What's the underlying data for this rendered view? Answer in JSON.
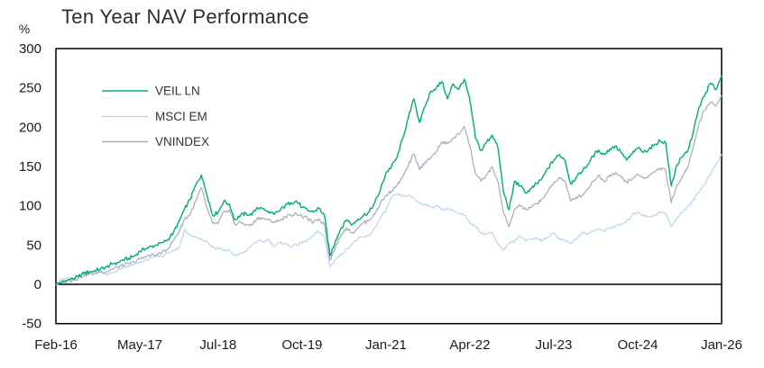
{
  "title": "Ten Year NAV Performance",
  "y_axis": {
    "unit": "%",
    "ticks": [
      300,
      250,
      200,
      150,
      100,
      50,
      0,
      -50
    ]
  },
  "x_axis": {
    "tick_labels": [
      "Feb-16",
      "May-17",
      "Jul-18",
      "Oct-19",
      "Jan-21",
      "Apr-22",
      "Jul-23",
      "Oct-24",
      "Jan-26"
    ],
    "tick_months": [
      0,
      15,
      29,
      44,
      59,
      74,
      89,
      104,
      119
    ]
  },
  "colors": {
    "veil_ln": "#00ae73",
    "msci_em": "#bdd6ee",
    "vnindex": "#a6aec0",
    "axis": "#000000"
  },
  "chart_data": {
    "type": "line",
    "title": "Ten Year NAV Performance",
    "ylabel": "%",
    "ylim": [
      -50,
      300
    ],
    "grid": false,
    "legend_position": "top-left inside plot",
    "x_start": "Feb-2016",
    "x_end": "Jan-2026",
    "x_frequency": "monthly",
    "x_tick_labels": [
      "Feb-16",
      "May-17",
      "Jul-18",
      "Oct-19",
      "Jan-21",
      "Apr-22",
      "Jul-23",
      "Oct-24",
      "Jan-26"
    ],
    "series": [
      {
        "name": "VEIL LN",
        "color": "#00ae73",
        "values": [
          0,
          3,
          5,
          7,
          10,
          14,
          16,
          17,
          20,
          22,
          26,
          28,
          31,
          33,
          36,
          42,
          45,
          48,
          50,
          53,
          57,
          66,
          80,
          96,
          108,
          126,
          139,
          114,
          88,
          92,
          106,
          102,
          82,
          88,
          90,
          88,
          98,
          96,
          91,
          89,
          94,
          100,
          104,
          106,
          98,
          94,
          92,
          97,
          88,
          36,
          56,
          72,
          82,
          76,
          83,
          88,
          92,
          104,
          120,
          142,
          150,
          162,
          186,
          212,
          236,
          206,
          226,
          246,
          250,
          258,
          236,
          255,
          248,
          261,
          234,
          186,
          170,
          181,
          190,
          174,
          118,
          95,
          131,
          125,
          116,
          122,
          128,
          136,
          148,
          158,
          165,
          158,
          128,
          136,
          143,
          152,
          163,
          171,
          165,
          172,
          176,
          168,
          158,
          166,
          173,
          168,
          172,
          178,
          183,
          180,
          125,
          152,
          162,
          171,
          196,
          226,
          241,
          256,
          248,
          265
        ]
      },
      {
        "name": "MSCI EM",
        "color": "#bdd6ee",
        "values": [
          0,
          6,
          8,
          5,
          9,
          14,
          16,
          17,
          17,
          12,
          14,
          18,
          21,
          23,
          25,
          28,
          30,
          34,
          36,
          36,
          40,
          42,
          46,
          70,
          62,
          60,
          58,
          54,
          47,
          46,
          44,
          43,
          36,
          40,
          42,
          50,
          55,
          54,
          57,
          48,
          53,
          52,
          48,
          50,
          53,
          56,
          62,
          68,
          60,
          22,
          32,
          38,
          45,
          52,
          58,
          60,
          62,
          72,
          84,
          95,
          110,
          115,
          112,
          113,
          110,
          103,
          102,
          98,
          100,
          95,
          96,
          94,
          90,
          88,
          78,
          74,
          66,
          64,
          66,
          52,
          44,
          52,
          55,
          62,
          56,
          58,
          58,
          56,
          60,
          65,
          58,
          56,
          52,
          58,
          66,
          64,
          68,
          70,
          68,
          72,
          74,
          76,
          80,
          88,
          92,
          88,
          86,
          88,
          92,
          90,
          73,
          85,
          92,
          100,
          108,
          118,
          128,
          140,
          152,
          165
        ]
      },
      {
        "name": "VNINDEX",
        "color": "#a6aec0",
        "values": [
          0,
          2,
          4,
          5,
          8,
          11,
          13,
          14,
          16,
          16,
          19,
          22,
          24,
          26,
          28,
          32,
          35,
          37,
          38,
          41,
          45,
          56,
          67,
          83,
          89,
          106,
          123,
          96,
          78,
          77,
          92,
          95,
          76,
          79,
          76,
          75,
          85,
          84,
          82,
          79,
          81,
          86,
          88,
          90,
          86,
          84,
          78,
          83,
          76,
          31,
          49,
          63,
          72,
          66,
          72,
          78,
          82,
          89,
          103,
          113,
          119,
          126,
          136,
          151,
          166,
          146,
          156,
          161,
          169,
          181,
          179,
          186,
          191,
          201,
          176,
          141,
          131,
          139,
          149,
          131,
          91,
          73,
          96,
          100,
          95,
          98,
          103,
          109,
          119,
          129,
          136,
          131,
          106,
          111,
          113,
          121,
          131,
          139,
          131,
          139,
          142,
          137,
          130,
          134,
          140,
          135,
          138,
          143,
          148,
          145,
          104,
          126,
          137,
          150,
          177,
          207,
          222,
          232,
          227,
          240
        ]
      }
    ]
  }
}
